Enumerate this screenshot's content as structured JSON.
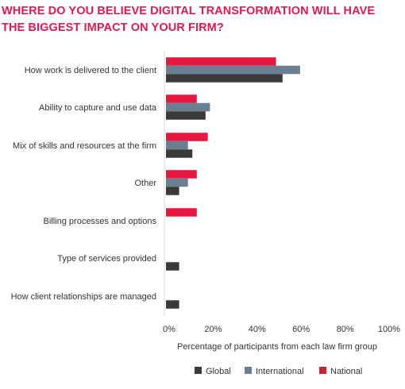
{
  "chart_data": {
    "type": "bar",
    "orientation": "horizontal",
    "title": "WHERE DO YOU BELIEVE DIGITAL TRANSFORMATION WILL HAVE THE BIGGEST IMPACT ON YOUR FIRM?",
    "xlabel": "Percentage of participants from each law firm group",
    "ylabel": "",
    "xlim": [
      0,
      100
    ],
    "xticks": [
      "0%",
      "20%",
      "40%",
      "60%",
      "80%",
      "100%"
    ],
    "categories": [
      "How work is delivered to the client",
      "Ability to capture and use data",
      "Mix of skills and resources at the firm",
      "Other",
      "Billing processes and options",
      "Type of services provided",
      "How client relationships are managed"
    ],
    "series": [
      {
        "name": "National",
        "color": "#e8173f",
        "values": [
          50,
          14,
          19,
          14,
          14,
          0,
          0
        ]
      },
      {
        "name": "International",
        "color": "#6b7f93",
        "values": [
          61,
          20,
          10,
          10,
          0,
          0,
          0
        ]
      },
      {
        "name": "Global",
        "color": "#3a3a3a",
        "values": [
          53,
          18,
          12,
          6,
          0,
          6,
          6
        ]
      }
    ],
    "legend": {
      "position": "bottom",
      "entries": [
        {
          "label": "Global",
          "color": "#3a3a3a"
        },
        {
          "label": "International",
          "color": "#6b7f93"
        },
        {
          "label": "National",
          "color": "#c0283a"
        }
      ]
    },
    "grid": false
  }
}
